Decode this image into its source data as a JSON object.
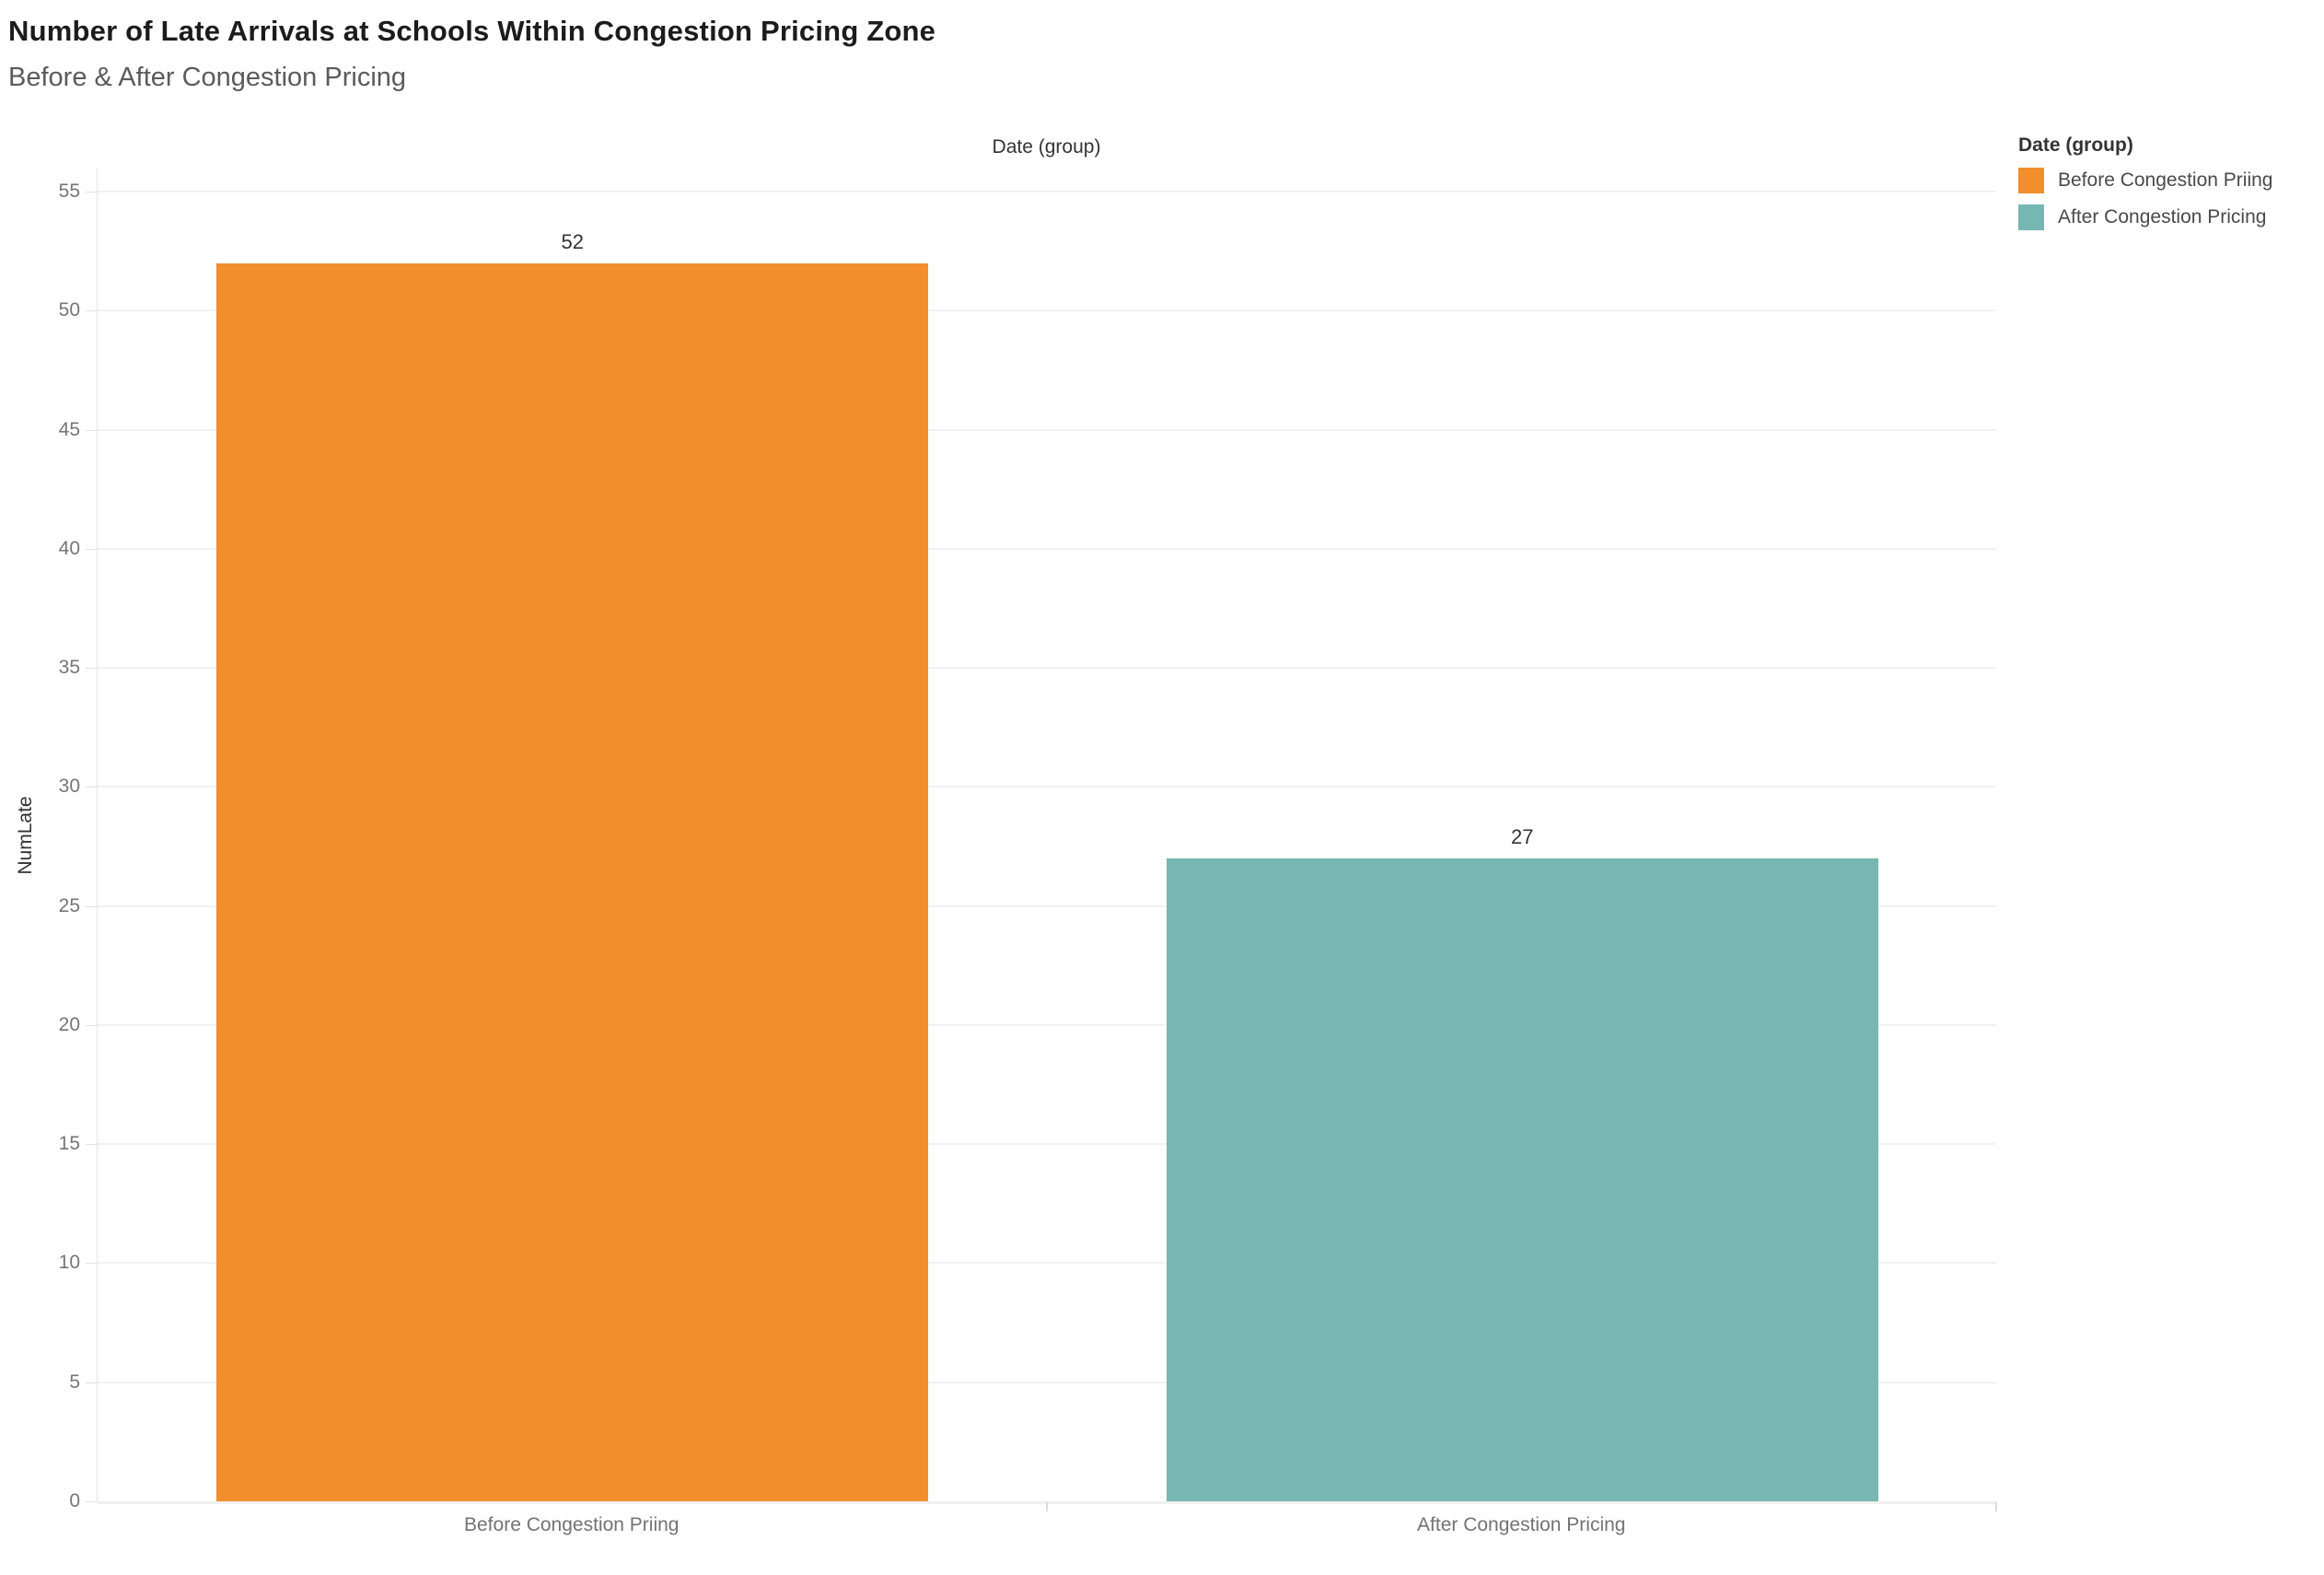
{
  "chart_data": {
    "type": "bar",
    "title": "Number of Late Arrivals at Schools Within Congestion Pricing Zone",
    "subtitle": "Before & After Congestion Pricing",
    "column_header": "Date (group)",
    "xlabel": "Date (group)",
    "ylabel": "NumLate",
    "categories": [
      "Before Congestion Priing",
      "After Congestion Pricing"
    ],
    "values": [
      52,
      27
    ],
    "value_labels": [
      "52",
      "27"
    ],
    "bar_colors": [
      "#F28E2B",
      "#76B7B2"
    ],
    "ylim": [
      0,
      55
    ],
    "yticks": [
      0,
      5,
      10,
      15,
      20,
      25,
      30,
      35,
      40,
      45,
      50,
      55
    ],
    "grid": "horizontal-light",
    "legend_position": "top-right",
    "legend": {
      "title": "Date (group)",
      "entries": [
        {
          "label": "Before Congestion Priing",
          "color": "#F28E2B"
        },
        {
          "label": "After Congestion Pricing",
          "color": "#76B7B2"
        }
      ]
    },
    "theme": {
      "background": "#ffffff",
      "title_color": "#1c1c1c",
      "subtitle_color": "#5b5b5b",
      "axis_text_color": "#767676",
      "header_text_color": "#333333",
      "gridline_color": "#f1f1f1"
    }
  }
}
